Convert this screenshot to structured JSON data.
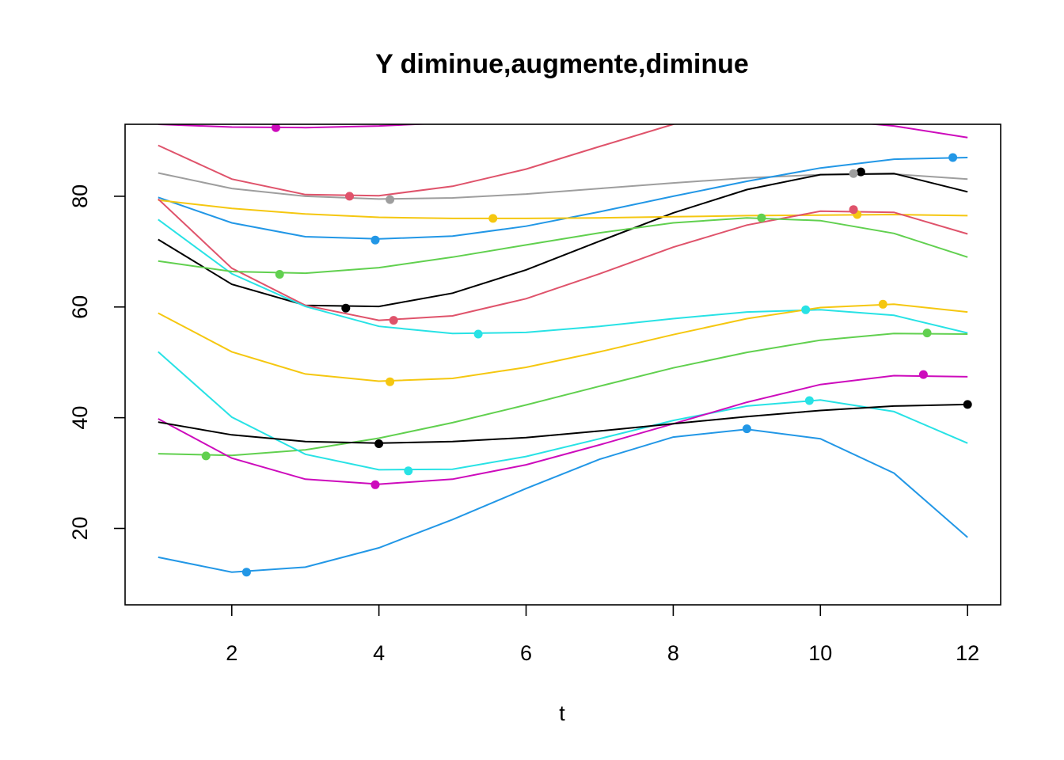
{
  "chart_data": {
    "type": "line",
    "title": "Y diminue,augmente,diminue",
    "xlabel": "t",
    "ylabel": "",
    "xlim": [
      0.55,
      12.45
    ],
    "ylim": [
      6.2,
      93.0
    ],
    "xticks": [
      2,
      4,
      6,
      8,
      10,
      12
    ],
    "yticks": [
      20,
      40,
      60,
      80
    ],
    "x": [
      1,
      2,
      3,
      4,
      5,
      6,
      7,
      8,
      9,
      10,
      11,
      12
    ],
    "grid": false,
    "legend": "none",
    "series": [
      {
        "color": "#DF536B",
        "values": [
          89.2,
          83.1,
          80.3,
          80.1,
          81.8,
          84.9,
          89.0,
          93.0,
          97.0,
          99.5,
          98.0,
          95.0
        ],
        "marker": [
          3.6,
          80.0
        ]
      },
      {
        "color": "#CD0BBC",
        "values": [
          93.0,
          92.5,
          92.4,
          92.7,
          93.3,
          94.0,
          94.6,
          94.8,
          94.5,
          93.9,
          92.7,
          90.6
        ],
        "marker": [
          2.6,
          92.4
        ]
      },
      {
        "color": "#9E9E9E",
        "values": [
          84.2,
          81.4,
          80.0,
          79.5,
          79.7,
          80.4,
          81.4,
          82.4,
          83.3,
          83.9,
          84.0,
          83.1
        ],
        "marker": [
          4.15,
          79.4
        ]
      },
      {
        "color": "#2297E6",
        "values": [
          79.8,
          75.2,
          72.7,
          72.3,
          72.8,
          74.6,
          77.2,
          80.0,
          82.7,
          85.1,
          86.7,
          87.0
        ],
        "marker": [
          11.8,
          87.0
        ]
      },
      {
        "color": "#000000",
        "values": [
          72.2,
          64.1,
          60.3,
          60.1,
          62.5,
          66.7,
          71.9,
          77.0,
          81.2,
          83.9,
          84.1,
          80.8
        ],
        "marker": [
          10.55,
          84.4
        ]
      },
      {
        "color": "#F5C710",
        "values": [
          79.3,
          77.8,
          76.8,
          76.2,
          76.0,
          76.0,
          76.1,
          76.3,
          76.5,
          76.6,
          76.7,
          76.5
        ],
        "marker": [
          5.55,
          76.0
        ]
      },
      {
        "color": "#DF536B",
        "values": [
          79.5,
          67.0,
          60.3,
          57.6,
          58.4,
          61.5,
          66.0,
          70.8,
          74.8,
          77.3,
          77.1,
          73.2
        ],
        "marker": [
          4.2,
          57.6
        ]
      },
      {
        "color": "#28E2E5",
        "values": [
          75.8,
          66.0,
          60.1,
          56.5,
          55.2,
          55.4,
          56.5,
          57.9,
          59.1,
          59.5,
          58.5,
          55.3
        ],
        "marker": [
          5.35,
          55.1
        ]
      },
      {
        "color": "#61D04F",
        "values": [
          68.3,
          66.4,
          66.1,
          67.1,
          69.0,
          71.2,
          73.4,
          75.2,
          76.1,
          75.6,
          73.3,
          69.0
        ],
        "marker": [
          2.65,
          65.9
        ]
      },
      {
        "color": "#F5C710",
        "values": [
          58.9,
          51.9,
          47.9,
          46.6,
          47.1,
          49.1,
          51.9,
          55.0,
          57.9,
          59.9,
          60.5,
          59.1
        ],
        "marker": [
          4.15,
          46.5
        ]
      },
      {
        "color": "#61D04F",
        "values": [
          33.5,
          33.2,
          34.2,
          36.3,
          39.1,
          42.3,
          45.7,
          49.0,
          51.8,
          54.0,
          55.2,
          55.1
        ],
        "marker": [
          11.45,
          55.3
        ]
      },
      {
        "color": "#28E2E5",
        "values": [
          51.9,
          40.1,
          33.4,
          30.6,
          30.7,
          33.0,
          36.2,
          39.5,
          42.1,
          43.2,
          41.1,
          35.4
        ],
        "marker": [
          4.4,
          30.4
        ]
      },
      {
        "color": "#CD0BBC",
        "values": [
          39.8,
          32.7,
          28.9,
          28.0,
          28.9,
          31.5,
          35.1,
          38.9,
          42.8,
          46.0,
          47.6,
          47.4
        ],
        "marker": [
          11.4,
          47.8
        ]
      },
      {
        "color": "#000000",
        "values": [
          39.2,
          36.9,
          35.7,
          35.4,
          35.7,
          36.4,
          37.6,
          38.9,
          40.2,
          41.3,
          42.1,
          42.4
        ],
        "marker": [
          12.0,
          42.4
        ]
      },
      {
        "color": "#2297E6",
        "values": [
          14.8,
          12.1,
          13.0,
          16.5,
          21.6,
          27.2,
          32.5,
          36.5,
          37.9,
          36.2,
          30.0,
          18.4
        ],
        "marker": [
          2.2,
          12.1
        ]
      },
      {
        "color": "#F5C710",
        "values": null,
        "marker": [
          10.5,
          76.7
        ]
      },
      {
        "color": "#DF536B",
        "values": null,
        "marker": [
          10.45,
          77.6
        ]
      },
      {
        "color": "#9E9E9E",
        "values": null,
        "marker": [
          10.45,
          84.1
        ]
      },
      {
        "color": "#F5C710",
        "values": null,
        "marker": [
          10.85,
          60.5
        ]
      },
      {
        "color": "#28E2E5",
        "values": null,
        "marker": [
          9.8,
          59.5
        ]
      },
      {
        "color": "#61D04F",
        "values": null,
        "marker": [
          9.2,
          76.1
        ]
      },
      {
        "color": "#2297E6",
        "values": null,
        "marker": [
          3.95,
          72.1
        ]
      },
      {
        "color": "#000000",
        "values": null,
        "marker": [
          3.55,
          59.8
        ]
      },
      {
        "color": "#28E2E5",
        "values": null,
        "marker": [
          9.85,
          43.1
        ]
      },
      {
        "color": "#2297E6",
        "values": null,
        "marker": [
          9.0,
          38.0
        ]
      },
      {
        "color": "#000000",
        "values": null,
        "marker": [
          4.0,
          35.3
        ]
      },
      {
        "color": "#61D04F",
        "values": null,
        "marker": [
          1.65,
          33.1
        ]
      },
      {
        "color": "#CD0BBC",
        "values": null,
        "marker": [
          3.95,
          27.9
        ]
      }
    ]
  }
}
